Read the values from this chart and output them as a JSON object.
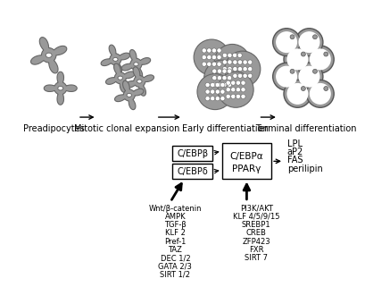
{
  "bg_color": "#ffffff",
  "cell_color": "#999999",
  "cell_edge": "#666666",
  "stage_labels": [
    "Preadipocytes",
    "Mitotic clonal expansion",
    "Early differentiation",
    "Terminal differentiation"
  ],
  "inhibitor_list": [
    "Wnt/β-catenin",
    "AMPK",
    "TGF-β",
    "KLF 2",
    "Pref-1",
    "TAZ",
    "DEC 1/2",
    "GATA 2/3",
    "SIRT 1/2"
  ],
  "activator_list": [
    "PI3K/AKT",
    "KLF 4/5/9/15",
    "SREBP1",
    "CREB",
    "ZFP423",
    "FXR",
    "SIRT 7"
  ],
  "terminal_genes": [
    "LPL",
    "aP2",
    "FAS",
    "perilipin"
  ],
  "box1_text": "C/EBPβ",
  "box2_text": "C/EBPδ",
  "main_box_text1": "C/EBPα",
  "main_box_text2": "PPARγ"
}
